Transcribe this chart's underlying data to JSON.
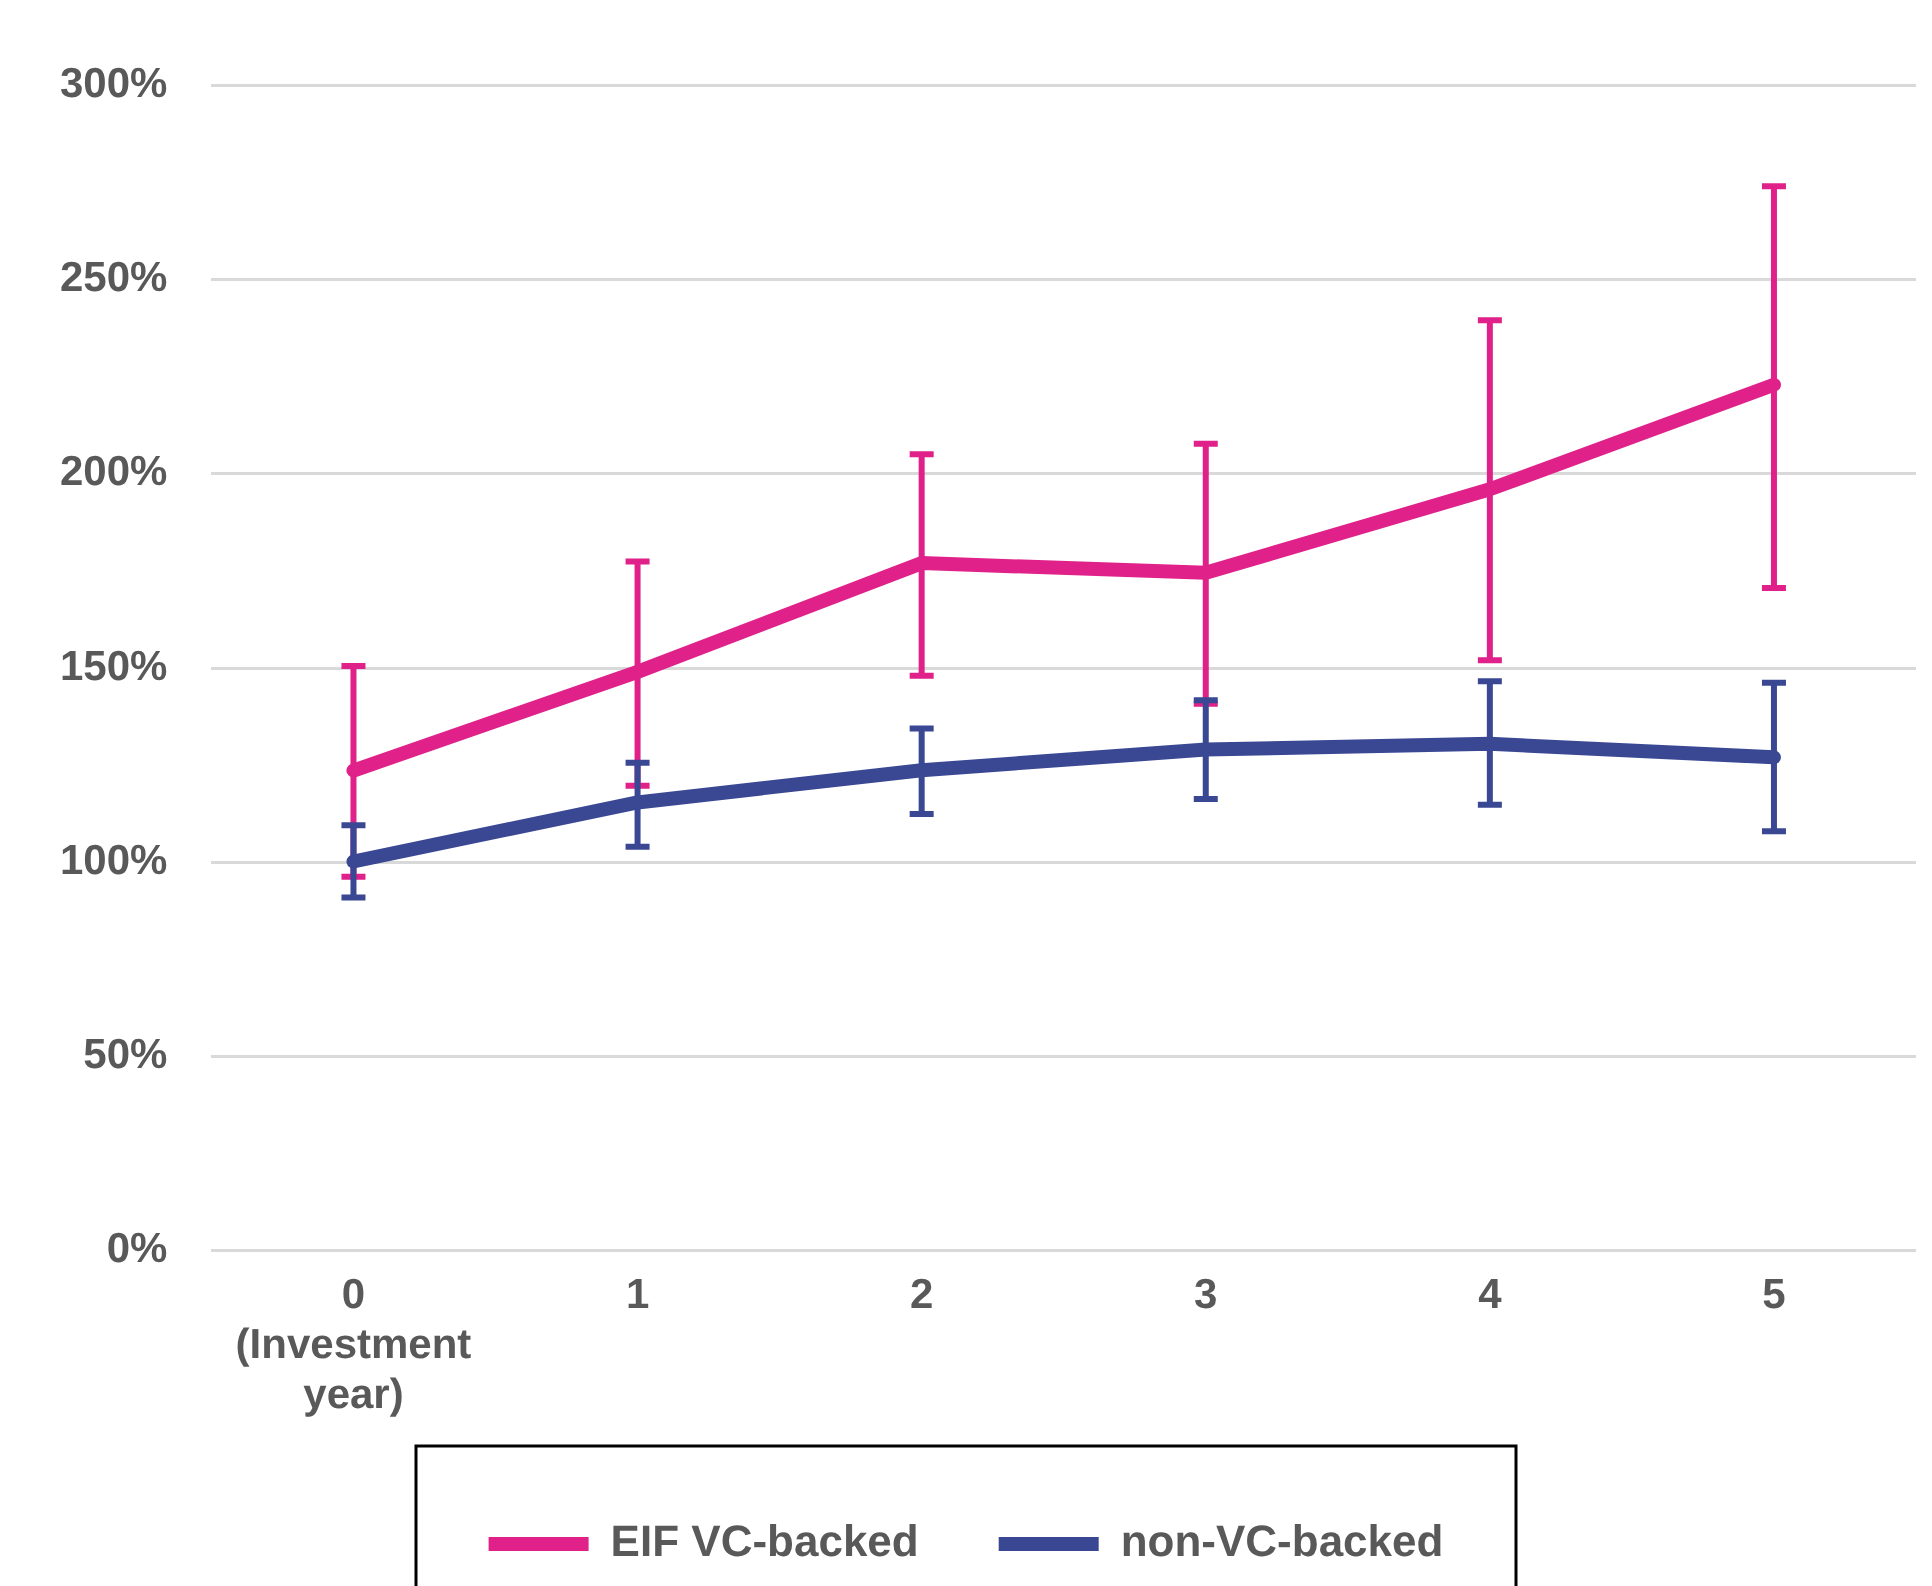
{
  "chart_data": {
    "type": "line",
    "categories": [
      "0 (Investment year)",
      "1",
      "2",
      "3",
      "4",
      "5"
    ],
    "series": [
      {
        "name": "EIF VC-backed",
        "color": "#e0218a",
        "values": [
          123.6,
          149,
          177,
          174.5,
          196,
          222.9
        ],
        "errors": [
          [
            96.3,
            150.5
          ],
          [
            119.7,
            177.4
          ],
          [
            148,
            205
          ],
          [
            140.8,
            207.7
          ],
          [
            152,
            239.5
          ],
          [
            170.6,
            274
          ]
        ]
      },
      {
        "name": "non-VC-backed",
        "color": "#3a4894",
        "values": [
          100.2,
          115.4,
          123.7,
          129,
          130.5,
          127
        ],
        "errors": [
          [
            90.9,
            109.5
          ],
          [
            104,
            125.6
          ],
          [
            112.4,
            134.4
          ],
          [
            116.3,
            141.7
          ],
          [
            114.8,
            146.6
          ],
          [
            108,
            146.2
          ]
        ]
      }
    ],
    "ylim": [
      0,
      300
    ],
    "yticks": [
      {
        "value": 0,
        "label": "0%"
      },
      {
        "value": 50,
        "label": "50%"
      },
      {
        "value": 100,
        "label": "100%"
      },
      {
        "value": 150,
        "label": "150%"
      },
      {
        "value": 200,
        "label": "200%"
      },
      {
        "value": 250,
        "label": "250%"
      },
      {
        "value": 300,
        "label": "300%"
      }
    ],
    "grid": "y",
    "legend": "bottom",
    "marker": "none",
    "line_style": "solid"
  }
}
